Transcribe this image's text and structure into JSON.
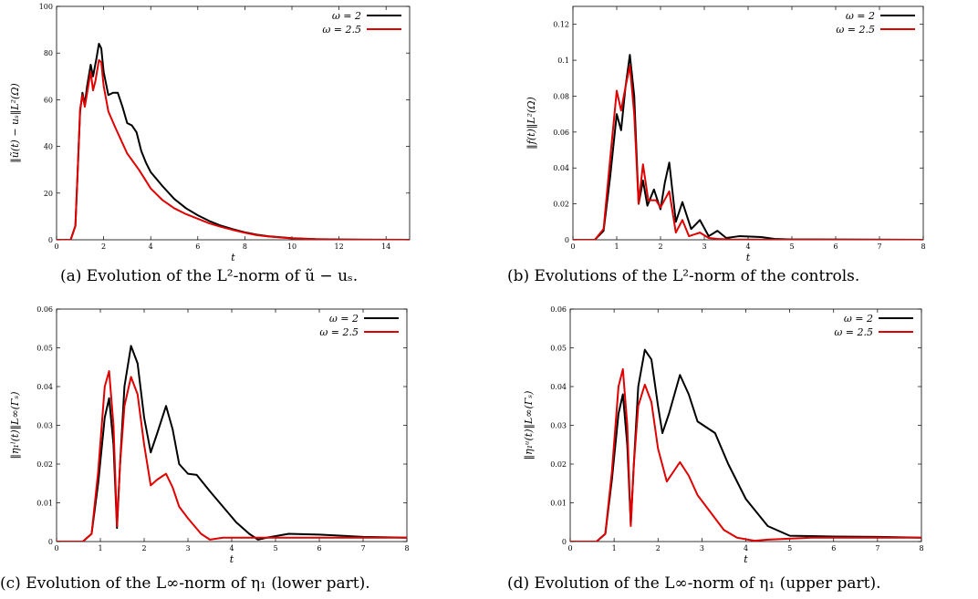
{
  "series_colors": {
    "omega_2": "#000000",
    "omega_2_5": "#e00000"
  },
  "chart_data": [
    {
      "id": "a",
      "type": "line",
      "caption": "(a) Evolution of the L²-norm of ũ − uₛ.",
      "xlabel": "t",
      "ylabel": "‖ũ(t) − uₛ‖L²(Ω)",
      "xlim": [
        0,
        15
      ],
      "ylim": [
        0,
        100
      ],
      "xticks": [
        0,
        2,
        4,
        6,
        8,
        10,
        12,
        14
      ],
      "yticks": [
        0,
        20,
        40,
        60,
        80,
        100
      ],
      "legend_position": "top-right",
      "grid": false,
      "series": [
        {
          "name": "ω = 2",
          "color": "#000000",
          "points": [
            [
              0,
              0
            ],
            [
              0.6,
              0
            ],
            [
              0.8,
              6
            ],
            [
              0.9,
              30
            ],
            [
              1.0,
              55
            ],
            [
              1.1,
              63
            ],
            [
              1.2,
              58
            ],
            [
              1.3,
              66
            ],
            [
              1.45,
              75
            ],
            [
              1.55,
              70
            ],
            [
              1.7,
              78
            ],
            [
              1.8,
              84
            ],
            [
              1.9,
              82
            ],
            [
              2.0,
              72
            ],
            [
              2.2,
              62
            ],
            [
              2.4,
              63
            ],
            [
              2.6,
              63
            ],
            [
              2.8,
              57
            ],
            [
              3.0,
              50
            ],
            [
              3.2,
              49
            ],
            [
              3.4,
              46
            ],
            [
              3.6,
              38
            ],
            [
              3.8,
              33
            ],
            [
              4.0,
              29
            ],
            [
              4.5,
              23
            ],
            [
              5.0,
              17.5
            ],
            [
              5.5,
              13.5
            ],
            [
              6.0,
              10.5
            ],
            [
              6.5,
              8
            ],
            [
              7.0,
              6
            ],
            [
              7.5,
              4.5
            ],
            [
              8.0,
              3.2
            ],
            [
              8.5,
              2.2
            ],
            [
              9.0,
              1.5
            ],
            [
              10.0,
              0.7
            ],
            [
              11.0,
              0.3
            ],
            [
              12.0,
              0.15
            ],
            [
              13.0,
              0.05
            ],
            [
              15.0,
              0
            ]
          ]
        },
        {
          "name": "ω = 2.5",
          "color": "#e00000",
          "points": [
            [
              0,
              0
            ],
            [
              0.6,
              0
            ],
            [
              0.8,
              6
            ],
            [
              0.9,
              30
            ],
            [
              1.0,
              56
            ],
            [
              1.1,
              62
            ],
            [
              1.2,
              57
            ],
            [
              1.3,
              63
            ],
            [
              1.45,
              72
            ],
            [
              1.55,
              64
            ],
            [
              1.65,
              68
            ],
            [
              1.8,
              77
            ],
            [
              1.9,
              76
            ],
            [
              2.0,
              66
            ],
            [
              2.2,
              55
            ],
            [
              2.5,
              48
            ],
            [
              3.0,
              37
            ],
            [
              3.5,
              30
            ],
            [
              4.0,
              22
            ],
            [
              4.5,
              17
            ],
            [
              5.0,
              13.5
            ],
            [
              5.5,
              11
            ],
            [
              6.0,
              9
            ],
            [
              6.5,
              7
            ],
            [
              7.0,
              5.5
            ],
            [
              7.5,
              4.2
            ],
            [
              8.0,
              3
            ],
            [
              8.5,
              2
            ],
            [
              9.0,
              1.4
            ],
            [
              10.0,
              0.6
            ],
            [
              11.0,
              0.25
            ],
            [
              12.0,
              0.1
            ],
            [
              13.0,
              0.05
            ],
            [
              15.0,
              0
            ]
          ]
        }
      ]
    },
    {
      "id": "b",
      "type": "line",
      "caption": "(b) Evolutions of the L²-norm of the controls.",
      "xlabel": "t",
      "ylabel": "‖f(t)‖L²(Ω)",
      "xlim": [
        0,
        8
      ],
      "ylim": [
        0,
        0.13
      ],
      "xticks": [
        0,
        1,
        2,
        3,
        4,
        5,
        6,
        7,
        8
      ],
      "yticks": [
        0,
        0.02,
        0.04,
        0.06,
        0.08,
        0.1,
        0.12
      ],
      "legend_position": "top-right",
      "grid": false,
      "series": [
        {
          "name": "ω = 2",
          "color": "#000000",
          "points": [
            [
              0,
              0
            ],
            [
              0.5,
              0
            ],
            [
              0.7,
              0.005
            ],
            [
              0.85,
              0.035
            ],
            [
              1.0,
              0.07
            ],
            [
              1.1,
              0.061
            ],
            [
              1.2,
              0.085
            ],
            [
              1.3,
              0.103
            ],
            [
              1.4,
              0.08
            ],
            [
              1.5,
              0.02
            ],
            [
              1.6,
              0.033
            ],
            [
              1.7,
              0.019
            ],
            [
              1.85,
              0.028
            ],
            [
              2.0,
              0.017
            ],
            [
              2.1,
              0.032
            ],
            [
              2.2,
              0.043
            ],
            [
              2.35,
              0.01
            ],
            [
              2.5,
              0.021
            ],
            [
              2.7,
              0.006
            ],
            [
              2.9,
              0.011
            ],
            [
              3.1,
              0.002
            ],
            [
              3.3,
              0.005
            ],
            [
              3.5,
              0.001
            ],
            [
              3.8,
              0.002
            ],
            [
              4.3,
              0.0015
            ],
            [
              4.6,
              0.0005
            ],
            [
              5.0,
              0.0002
            ],
            [
              8,
              0
            ]
          ]
        },
        {
          "name": "ω = 2.5",
          "color": "#e00000",
          "points": [
            [
              0,
              0
            ],
            [
              0.5,
              0
            ],
            [
              0.7,
              0.006
            ],
            [
              0.85,
              0.045
            ],
            [
              1.0,
              0.083
            ],
            [
              1.1,
              0.072
            ],
            [
              1.2,
              0.085
            ],
            [
              1.3,
              0.097
            ],
            [
              1.4,
              0.07
            ],
            [
              1.5,
              0.02
            ],
            [
              1.6,
              0.042
            ],
            [
              1.72,
              0.022
            ],
            [
              1.9,
              0.022
            ],
            [
              2.0,
              0.018
            ],
            [
              2.2,
              0.027
            ],
            [
              2.35,
              0.004
            ],
            [
              2.5,
              0.011
            ],
            [
              2.65,
              0.002
            ],
            [
              2.9,
              0.004
            ],
            [
              3.1,
              0.001
            ],
            [
              3.3,
              0.0005
            ],
            [
              3.6,
              0.0002
            ],
            [
              8,
              0
            ]
          ]
        }
      ]
    },
    {
      "id": "c",
      "type": "line",
      "caption": "(c) Evolution of the L∞-norm of η₁ (lower part).",
      "xlabel": "t",
      "ylabel": "‖η₁ˡ(t)‖L∞(Γₛ)",
      "xlim": [
        0,
        8
      ],
      "ylim": [
        0,
        0.06
      ],
      "xticks": [
        0,
        1,
        2,
        3,
        4,
        5,
        6,
        7,
        8
      ],
      "yticks": [
        0,
        0.01,
        0.02,
        0.03,
        0.04,
        0.05,
        0.06
      ],
      "legend_position": "top-right",
      "grid": false,
      "series": [
        {
          "name": "ω = 2",
          "color": "#000000",
          "points": [
            [
              0,
              0
            ],
            [
              0.6,
              0
            ],
            [
              0.8,
              0.002
            ],
            [
              0.95,
              0.015
            ],
            [
              1.1,
              0.032
            ],
            [
              1.2,
              0.037
            ],
            [
              1.3,
              0.025
            ],
            [
              1.38,
              0.0035
            ],
            [
              1.45,
              0.02
            ],
            [
              1.55,
              0.04
            ],
            [
              1.7,
              0.0505
            ],
            [
              1.85,
              0.046
            ],
            [
              2.0,
              0.032
            ],
            [
              2.15,
              0.023
            ],
            [
              2.3,
              0.028
            ],
            [
              2.5,
              0.035
            ],
            [
              2.65,
              0.029
            ],
            [
              2.8,
              0.02
            ],
            [
              3.0,
              0.0175
            ],
            [
              3.2,
              0.0172
            ],
            [
              3.5,
              0.013
            ],
            [
              3.8,
              0.009
            ],
            [
              4.1,
              0.005
            ],
            [
              4.4,
              0.002
            ],
            [
              4.6,
              0.0005
            ],
            [
              4.8,
              0.001
            ],
            [
              5.3,
              0.002
            ],
            [
              6.0,
              0.0018
            ],
            [
              7.0,
              0.0012
            ],
            [
              8.0,
              0.001
            ]
          ]
        },
        {
          "name": "ω = 2.5",
          "color": "#e00000",
          "points": [
            [
              0,
              0
            ],
            [
              0.6,
              0
            ],
            [
              0.8,
              0.002
            ],
            [
              0.95,
              0.018
            ],
            [
              1.1,
              0.04
            ],
            [
              1.2,
              0.044
            ],
            [
              1.3,
              0.03
            ],
            [
              1.38,
              0.004
            ],
            [
              1.45,
              0.02
            ],
            [
              1.55,
              0.035
            ],
            [
              1.7,
              0.0425
            ],
            [
              1.85,
              0.038
            ],
            [
              2.0,
              0.025
            ],
            [
              2.15,
              0.0145
            ],
            [
              2.3,
              0.016
            ],
            [
              2.5,
              0.0175
            ],
            [
              2.65,
              0.014
            ],
            [
              2.8,
              0.009
            ],
            [
              3.0,
              0.006
            ],
            [
              3.3,
              0.002
            ],
            [
              3.5,
              0.0005
            ],
            [
              3.8,
              0.001
            ],
            [
              4.5,
              0.001
            ],
            [
              6.0,
              0.001
            ],
            [
              8.0,
              0.001
            ]
          ]
        }
      ]
    },
    {
      "id": "d",
      "type": "line",
      "caption": "(d) Evolution of the L∞-norm of η₁ (upper part).",
      "xlabel": "t",
      "ylabel": "‖η₁ᵘ(t)‖L∞(Γₛ)",
      "xlim": [
        0,
        8
      ],
      "ylim": [
        0,
        0.06
      ],
      "xticks": [
        0,
        1,
        2,
        3,
        4,
        5,
        6,
        7,
        8
      ],
      "yticks": [
        0,
        0.01,
        0.02,
        0.03,
        0.04,
        0.05,
        0.06
      ],
      "legend_position": "top-right",
      "grid": false,
      "series": [
        {
          "name": "ω = 2",
          "color": "#000000",
          "points": [
            [
              0,
              0
            ],
            [
              0.6,
              0
            ],
            [
              0.8,
              0.002
            ],
            [
              0.95,
              0.016
            ],
            [
              1.1,
              0.033
            ],
            [
              1.2,
              0.038
            ],
            [
              1.3,
              0.025
            ],
            [
              1.38,
              0.0045
            ],
            [
              1.45,
              0.02
            ],
            [
              1.55,
              0.04
            ],
            [
              1.7,
              0.0495
            ],
            [
              1.85,
              0.047
            ],
            [
              2.0,
              0.035
            ],
            [
              2.1,
              0.028
            ],
            [
              2.25,
              0.033
            ],
            [
              2.5,
              0.043
            ],
            [
              2.7,
              0.038
            ],
            [
              2.9,
              0.031
            ],
            [
              3.1,
              0.0295
            ],
            [
              3.3,
              0.028
            ],
            [
              3.6,
              0.02
            ],
            [
              4.0,
              0.011
            ],
            [
              4.5,
              0.004
            ],
            [
              5.0,
              0.0015
            ],
            [
              6.0,
              0.0013
            ],
            [
              7.0,
              0.0012
            ],
            [
              8.0,
              0.001
            ]
          ]
        },
        {
          "name": "ω = 2.5",
          "color": "#e00000",
          "points": [
            [
              0,
              0
            ],
            [
              0.6,
              0
            ],
            [
              0.8,
              0.002
            ],
            [
              0.95,
              0.018
            ],
            [
              1.1,
              0.04
            ],
            [
              1.2,
              0.0445
            ],
            [
              1.3,
              0.03
            ],
            [
              1.38,
              0.004
            ],
            [
              1.45,
              0.02
            ],
            [
              1.55,
              0.035
            ],
            [
              1.7,
              0.0405
            ],
            [
              1.85,
              0.036
            ],
            [
              2.0,
              0.024
            ],
            [
              2.2,
              0.0155
            ],
            [
              2.35,
              0.018
            ],
            [
              2.5,
              0.0205
            ],
            [
              2.7,
              0.017
            ],
            [
              2.9,
              0.012
            ],
            [
              3.2,
              0.0075
            ],
            [
              3.5,
              0.003
            ],
            [
              3.8,
              0.001
            ],
            [
              4.2,
              0.0002
            ],
            [
              4.5,
              0.0005
            ],
            [
              5.5,
              0.001
            ],
            [
              8.0,
              0.001
            ]
          ]
        }
      ]
    }
  ]
}
